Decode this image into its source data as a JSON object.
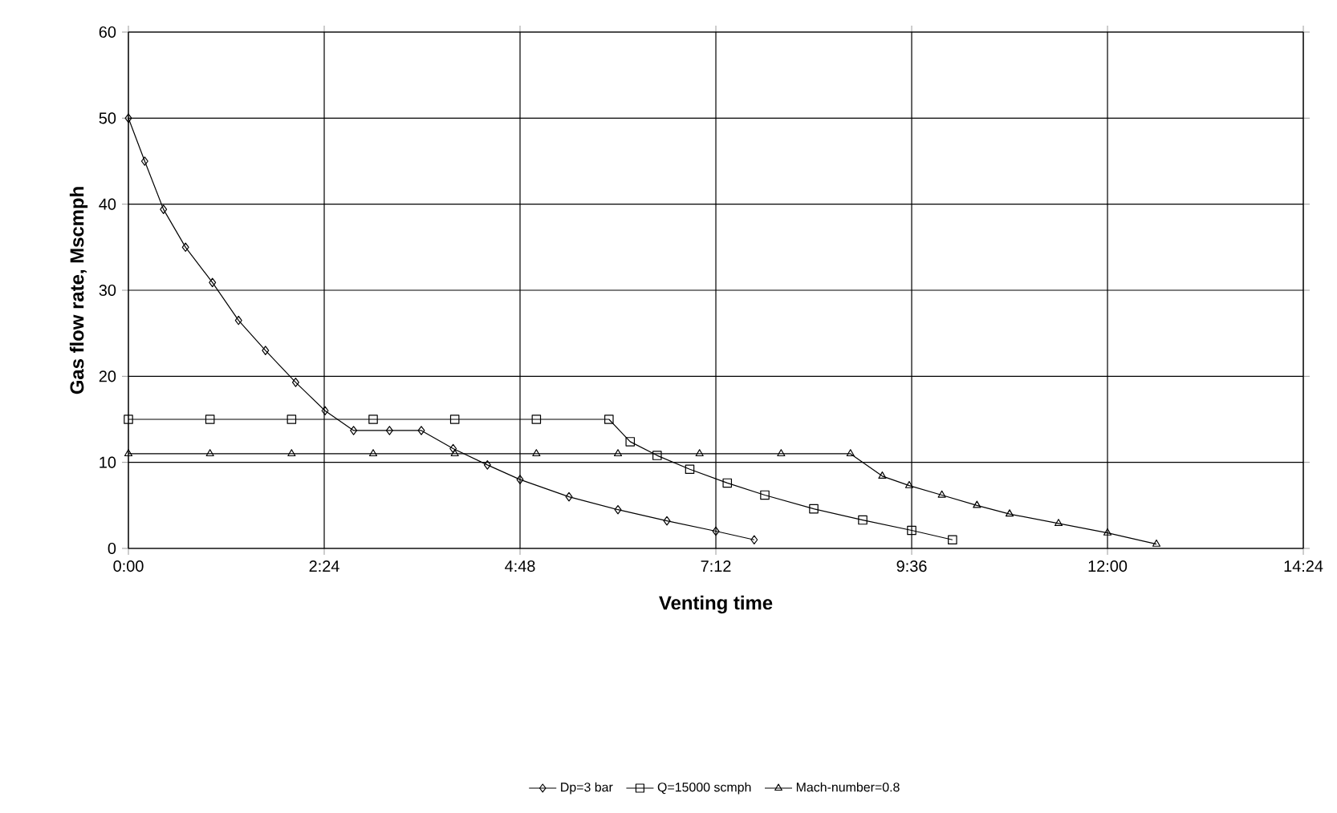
{
  "chart_data": {
    "type": "line",
    "xlabel": "Venting time",
    "ylabel": "Gas flow rate, Mscmph",
    "xlim": [
      0,
      14.4
    ],
    "ylim": [
      0,
      60
    ],
    "xticks": [
      {
        "value": 0,
        "label": "0:00"
      },
      {
        "value": 2.4,
        "label": "2:24"
      },
      {
        "value": 4.8,
        "label": "4:48"
      },
      {
        "value": 7.2,
        "label": "7:12"
      },
      {
        "value": 9.6,
        "label": "9:36"
      },
      {
        "value": 12,
        "label": "12:00"
      },
      {
        "value": 14.4,
        "label": "14:24"
      }
    ],
    "yticks": [
      0,
      10,
      20,
      30,
      40,
      50,
      60
    ],
    "grid": true,
    "legend": "bottom",
    "series": [
      {
        "name": "Dp=3 bar",
        "color": "#000000",
        "marker": "diamond",
        "x": [
          0,
          0.2,
          0.43,
          0.7,
          1.03,
          1.35,
          1.68,
          2.05,
          2.41,
          2.76,
          3.2,
          3.59,
          3.98,
          4.4,
          4.8,
          5.4,
          6.0,
          6.6,
          7.2,
          7.67
        ],
        "values": [
          50,
          45,
          39.4,
          35,
          30.9,
          26.5,
          23,
          19.3,
          16,
          13.7,
          13.7,
          13.7,
          11.6,
          9.7,
          8.0,
          6.0,
          4.5,
          3.2,
          2.0,
          1.0
        ]
      },
      {
        "name": "Q=15000 scmph",
        "color": "#000000",
        "marker": "square",
        "x": [
          0,
          1,
          2,
          3,
          4,
          5,
          5.89,
          6.15,
          6.48,
          6.88,
          7.34,
          7.8,
          8.4,
          9.0,
          9.6,
          10.1
        ],
        "values": [
          15,
          15,
          15,
          15,
          15,
          15,
          15,
          12.4,
          10.8,
          9.2,
          7.6,
          6.2,
          4.6,
          3.3,
          2.1,
          1.0
        ]
      },
      {
        "name": "Mach-number=0.8",
        "color": "#000000",
        "marker": "triangle",
        "x": [
          0,
          1,
          2,
          3,
          4,
          5,
          6,
          7,
          8,
          8.85,
          9.24,
          9.57,
          9.97,
          10.4,
          10.8,
          11.4,
          12.0,
          12.6
        ],
        "values": [
          11,
          11,
          11,
          11,
          11,
          11,
          11,
          11,
          11,
          11,
          8.4,
          7.3,
          6.2,
          5.0,
          4.0,
          2.9,
          1.8,
          0.5
        ]
      }
    ]
  }
}
